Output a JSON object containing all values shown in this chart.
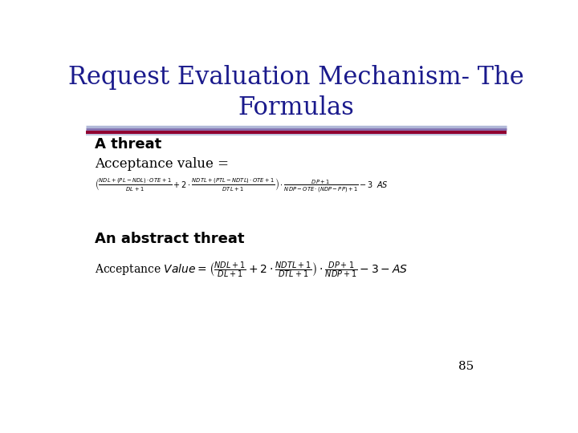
{
  "title_line1": "Request Evaluation Mechanism- The",
  "title_line2": "Formulas",
  "title_color": "#1a1a8c",
  "title_fontsize": 22,
  "bg_color": "#ffffff",
  "section1_header": "A threat",
  "section1_sub": "Acceptance value =",
  "section2_header": "An abstract threat",
  "page_number": "85",
  "formula1": "\\left(\\frac{NDL + (PL - NDL)\\cdot OTE + 1}{DL + 1} + 2 \\cdot \\frac{NDTL + (PTL - NDTL)\\cdot OTE + 1}{DTL + 1}\\right) \\cdot \\frac{DP + 1}{NDP - OTE \\cdot (NDP - PP) + 1} - 3 \\;\\; AS",
  "formula2": "\\left(\\frac{NDL + 1}{DL + 1} + 2 \\cdot \\frac{NDTL + 1}{DTL + 1}\\right) \\cdot \\frac{DP + 1}{NDP + 1} - 3 - AS"
}
